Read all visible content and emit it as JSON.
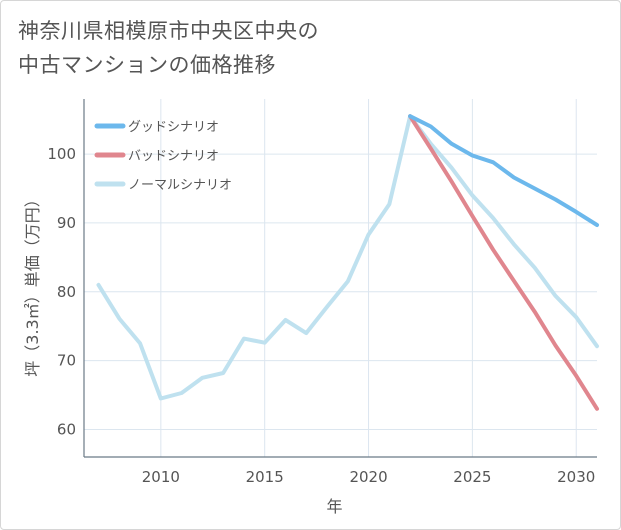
{
  "title": {
    "line1": "神奈川県相模原市中央区中央の",
    "line2": "中古マンションの価格推移"
  },
  "chart_data": {
    "type": "line",
    "xlabel": "年",
    "ylabel": "坪（3.3㎡）単価（万円）",
    "xlim": [
      2006.3,
      2031
    ],
    "ylim": [
      56,
      108
    ],
    "xticks": [
      2010,
      2015,
      2020,
      2025,
      2030
    ],
    "yticks": [
      60,
      70,
      80,
      90,
      100
    ],
    "grid": true,
    "legend_position": "top-left",
    "series": [
      {
        "name": "グッドシナリオ",
        "color": "#6cb8ec",
        "points": [
          [
            2022,
            105.5
          ],
          [
            2023,
            104.0
          ],
          [
            2024,
            101.5
          ],
          [
            2025,
            99.8
          ],
          [
            2026,
            98.8
          ],
          [
            2027,
            96.6
          ],
          [
            2028,
            95.0
          ],
          [
            2029,
            93.4
          ],
          [
            2030,
            91.6
          ],
          [
            2031,
            89.7
          ]
        ]
      },
      {
        "name": "バッドシナリオ",
        "color": "#e0868e",
        "points": [
          [
            2022,
            105.5
          ],
          [
            2023,
            100.8
          ],
          [
            2024,
            96.0
          ],
          [
            2025,
            91.0
          ],
          [
            2026,
            86.1
          ],
          [
            2027,
            81.6
          ],
          [
            2028,
            77.1
          ],
          [
            2029,
            72.2
          ],
          [
            2030,
            67.8
          ],
          [
            2031,
            63.0
          ]
        ]
      },
      {
        "name": "ノーマルシナリオ",
        "color": "#bfe1ef",
        "points": [
          [
            2007,
            81.0
          ],
          [
            2008,
            76.1
          ],
          [
            2009,
            72.5
          ],
          [
            2010,
            64.5
          ],
          [
            2011,
            65.3
          ],
          [
            2012,
            67.5
          ],
          [
            2013,
            68.2
          ],
          [
            2014,
            73.2
          ],
          [
            2015,
            72.6
          ],
          [
            2016,
            75.9
          ],
          [
            2017,
            74.0
          ],
          [
            2018,
            77.8
          ],
          [
            2019,
            81.5
          ],
          [
            2020,
            88.3
          ],
          [
            2021,
            92.7
          ],
          [
            2022,
            105.5
          ],
          [
            2023,
            101.5
          ],
          [
            2024,
            98.0
          ],
          [
            2025,
            94.0
          ],
          [
            2026,
            90.7
          ],
          [
            2027,
            86.9
          ],
          [
            2028,
            83.5
          ],
          [
            2029,
            79.4
          ],
          [
            2030,
            76.3
          ],
          [
            2031,
            72.1
          ]
        ]
      }
    ]
  }
}
